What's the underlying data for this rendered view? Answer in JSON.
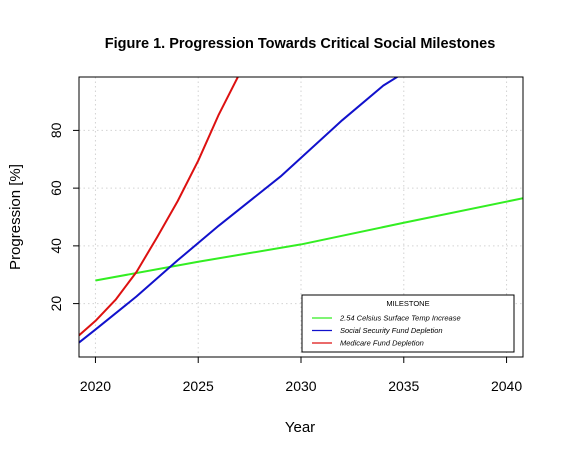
{
  "chart_data": {
    "type": "line",
    "title": "Figure 1. Progression Towards Critical Social Milestones",
    "xlabel": "Year",
    "ylabel": "Progression [%]",
    "xlim": [
      2019.2,
      2040.8
    ],
    "ylim": [
      1.5,
      98.5
    ],
    "x_ticks": [
      2020,
      2025,
      2030,
      2035,
      2040
    ],
    "y_ticks": [
      20,
      40,
      60,
      80
    ],
    "grid": true,
    "legend": {
      "title": "MILESTONE",
      "placement": "bottom-right"
    },
    "series": [
      {
        "name": "2.54 Celsius Surface Temp Increase",
        "color": "#33ee22",
        "x": [
          2020,
          2025,
          2030,
          2035,
          2040.8
        ],
        "y": [
          28,
          34.5,
          40.5,
          48,
          56.5
        ]
      },
      {
        "name": "Social Security Fund Depletion",
        "color": "#1111cc",
        "x": [
          2019.2,
          2020,
          2022,
          2024,
          2026,
          2029,
          2032,
          2034,
          2034.9
        ],
        "y": [
          6.5,
          11,
          22.5,
          35,
          47,
          64,
          83.5,
          95.5,
          99.5
        ]
      },
      {
        "name": "Medicare Fund Depletion",
        "color": "#dd1111",
        "x": [
          2019.2,
          2020,
          2021,
          2022,
          2023,
          2024,
          2025,
          2026,
          2027
        ],
        "y": [
          9,
          14,
          21.5,
          31,
          43,
          55.5,
          69.5,
          85.5,
          99.5
        ]
      }
    ]
  }
}
